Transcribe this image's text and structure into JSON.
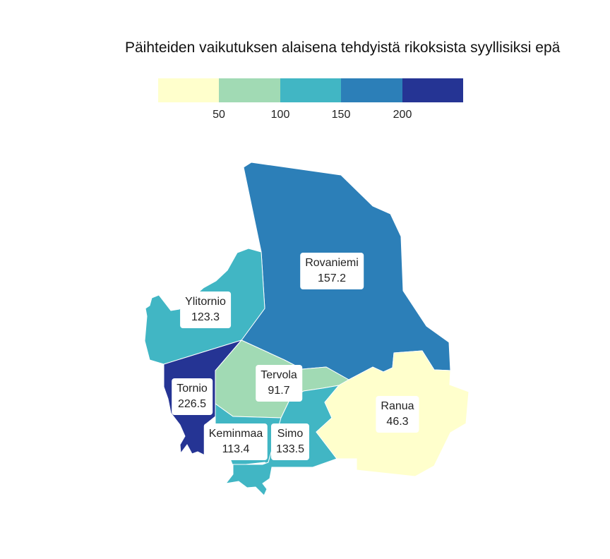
{
  "title": "Päihteiden vaikutuksen alaisena tehdyistä rikoksista syyllisiksi epä",
  "legend": {
    "colors": [
      "#ffffcc",
      "#a1dab4",
      "#41b6c4",
      "#2c7fb8",
      "#253494"
    ],
    "ticks": [
      "50",
      "100",
      "150",
      "200"
    ]
  },
  "regions": [
    {
      "name": "Rovaniemi",
      "value": "157.2"
    },
    {
      "name": "Ylitornio",
      "value": "123.3"
    },
    {
      "name": "Tornio",
      "value": "226.5"
    },
    {
      "name": "Tervola",
      "value": "91.7"
    },
    {
      "name": "Keminmaa",
      "value": "113.4"
    },
    {
      "name": "Simo",
      "value": "133.5"
    },
    {
      "name": "Ranua",
      "value": "46.3"
    }
  ]
}
